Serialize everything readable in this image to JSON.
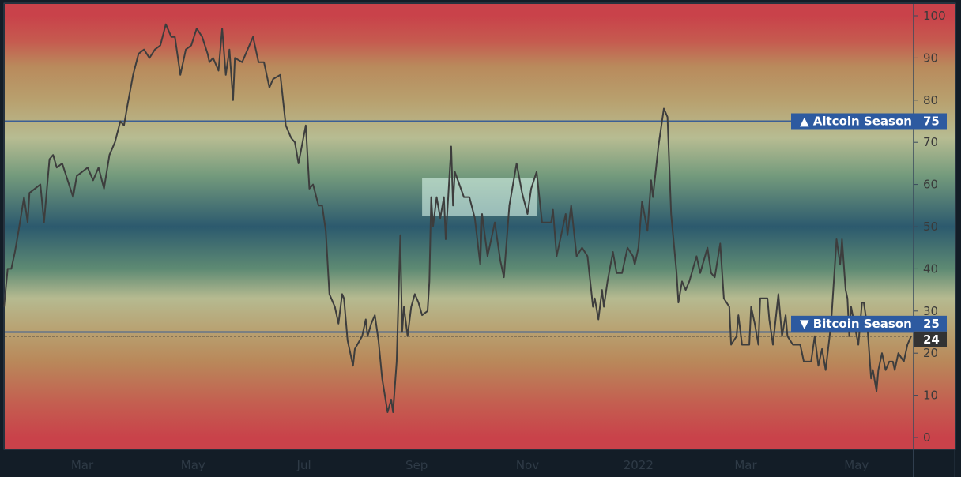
{
  "chart_data": {
    "type": "line",
    "title": "",
    "xlabel": "",
    "ylabel": "",
    "ylim": [
      0,
      100
    ],
    "yticks": [
      0,
      10,
      20,
      30,
      40,
      50,
      60,
      70,
      80,
      90,
      100
    ],
    "xticks": [
      {
        "date": "2021-03-01",
        "label": "Mar"
      },
      {
        "date": "2021-05-01",
        "label": "May"
      },
      {
        "date": "2021-07-01",
        "label": "Jul"
      },
      {
        "date": "2021-09-01",
        "label": "Sep"
      },
      {
        "date": "2021-11-01",
        "label": "Nov"
      },
      {
        "date": "2022-01-01",
        "label": "2022"
      },
      {
        "date": "2022-03-01",
        "label": "Mar"
      },
      {
        "date": "2022-05-01",
        "label": "May"
      }
    ],
    "grid": false,
    "line_color": "#3d3d3d",
    "background_gradient": [
      {
        "value": 100,
        "color": "#c9424a"
      },
      {
        "value": 94,
        "color": "#c65a4f"
      },
      {
        "value": 88,
        "color": "#b98a5c"
      },
      {
        "value": 80,
        "color": "#b8a06e"
      },
      {
        "value": 71,
        "color": "#b7bc92"
      },
      {
        "value": 62,
        "color": "#739a7c"
      },
      {
        "value": 50,
        "color": "#2c5a6e"
      },
      {
        "value": 40,
        "color": "#5e8a73"
      },
      {
        "value": 33,
        "color": "#b6ba90"
      },
      {
        "value": 25,
        "color": "#b8a070"
      },
      {
        "value": 18,
        "color": "#b9885a"
      },
      {
        "value": 8,
        "color": "#c45e50"
      },
      {
        "value": 0,
        "color": "#c9424a"
      }
    ],
    "reference_lines": [
      {
        "label": "▲ Altcoin Season",
        "value": 75,
        "value_label": "75",
        "color": "#3c5f95"
      },
      {
        "label": "▼ Bitcoin Season",
        "value": 25,
        "value_label": "25",
        "color": "#3c5f95"
      }
    ],
    "current_value": {
      "value": 24,
      "label": "24"
    },
    "highlight_box": {
      "date_from": "2021-09-04",
      "date_to": "2021-11-06",
      "value_from": 52.5,
      "value_to": 61.5
    },
    "label_color": "#2d5aa0",
    "series": [
      {
        "points": [
          [
            "2021-01-17",
            31
          ],
          [
            "2021-01-19",
            40
          ],
          [
            "2021-01-21",
            40
          ],
          [
            "2021-01-23",
            44
          ],
          [
            "2021-01-25",
            49
          ],
          [
            "2021-01-28",
            57
          ],
          [
            "2021-01-30",
            51
          ],
          [
            "2021-01-31",
            58
          ],
          [
            "2021-02-03",
            59
          ],
          [
            "2021-02-06",
            60
          ],
          [
            "2021-02-08",
            51
          ],
          [
            "2021-02-11",
            66
          ],
          [
            "2021-02-13",
            67
          ],
          [
            "2021-02-15",
            64
          ],
          [
            "2021-02-18",
            65
          ],
          [
            "2021-02-21",
            61
          ],
          [
            "2021-02-24",
            57
          ],
          [
            "2021-02-26",
            62
          ],
          [
            "2021-03-04",
            64
          ],
          [
            "2021-03-07",
            61
          ],
          [
            "2021-03-10",
            64
          ],
          [
            "2021-03-13",
            59
          ],
          [
            "2021-03-16",
            67
          ],
          [
            "2021-03-19",
            70
          ],
          [
            "2021-03-22",
            75
          ],
          [
            "2021-03-24",
            74
          ],
          [
            "2021-03-26",
            79
          ],
          [
            "2021-03-29",
            86
          ],
          [
            "2021-04-01",
            91
          ],
          [
            "2021-04-04",
            92
          ],
          [
            "2021-04-07",
            90
          ],
          [
            "2021-04-10",
            92
          ],
          [
            "2021-04-13",
            93
          ],
          [
            "2021-04-16",
            98
          ],
          [
            "2021-04-19",
            95
          ],
          [
            "2021-04-21",
            95
          ],
          [
            "2021-04-24",
            86
          ],
          [
            "2021-04-27",
            92
          ],
          [
            "2021-04-30",
            93
          ],
          [
            "2021-05-03",
            97
          ],
          [
            "2021-05-06",
            95
          ],
          [
            "2021-05-09",
            91
          ],
          [
            "2021-05-10",
            89
          ],
          [
            "2021-05-12",
            90
          ],
          [
            "2021-05-15",
            87
          ],
          [
            "2021-05-17",
            97
          ],
          [
            "2021-05-19",
            86
          ],
          [
            "2021-05-21",
            92
          ],
          [
            "2021-05-23",
            80
          ],
          [
            "2021-05-24",
            90
          ],
          [
            "2021-05-28",
            89
          ],
          [
            "2021-05-31",
            92
          ],
          [
            "2021-06-03",
            95
          ],
          [
            "2021-06-06",
            89
          ],
          [
            "2021-06-09",
            89
          ],
          [
            "2021-06-12",
            83
          ],
          [
            "2021-06-14",
            85
          ],
          [
            "2021-06-18",
            86
          ],
          [
            "2021-06-19",
            82
          ],
          [
            "2021-06-21",
            74
          ],
          [
            "2021-06-24",
            71
          ],
          [
            "2021-06-26",
            70
          ],
          [
            "2021-06-28",
            65
          ],
          [
            "2021-07-02",
            74
          ],
          [
            "2021-07-04",
            59
          ],
          [
            "2021-07-06",
            60
          ],
          [
            "2021-07-09",
            55
          ],
          [
            "2021-07-11",
            55
          ],
          [
            "2021-07-13",
            49
          ],
          [
            "2021-07-15",
            34
          ],
          [
            "2021-07-16",
            33
          ],
          [
            "2021-07-18",
            31
          ],
          [
            "2021-07-20",
            27
          ],
          [
            "2021-07-22",
            34
          ],
          [
            "2021-07-23",
            33
          ],
          [
            "2021-07-25",
            23
          ],
          [
            "2021-07-28",
            17
          ],
          [
            "2021-07-29",
            21
          ],
          [
            "2021-08-02",
            24
          ],
          [
            "2021-08-04",
            28
          ],
          [
            "2021-08-05",
            24
          ],
          [
            "2021-08-07",
            27
          ],
          [
            "2021-08-09",
            29
          ],
          [
            "2021-08-11",
            23
          ],
          [
            "2021-08-13",
            14
          ],
          [
            "2021-08-16",
            6
          ],
          [
            "2021-08-18",
            9
          ],
          [
            "2021-08-19",
            6
          ],
          [
            "2021-08-21",
            18
          ],
          [
            "2021-08-23",
            48
          ],
          [
            "2021-08-24",
            25
          ],
          [
            "2021-08-25",
            31
          ],
          [
            "2021-08-27",
            24
          ],
          [
            "2021-08-29",
            31
          ],
          [
            "2021-08-31",
            34
          ],
          [
            "2021-09-02",
            32
          ],
          [
            "2021-09-04",
            29
          ],
          [
            "2021-09-07",
            30
          ],
          [
            "2021-09-08",
            37
          ],
          [
            "2021-09-09",
            57
          ],
          [
            "2021-09-10",
            50
          ],
          [
            "2021-09-12",
            57
          ],
          [
            "2021-09-14",
            52
          ],
          [
            "2021-09-16",
            57
          ],
          [
            "2021-09-17",
            47
          ],
          [
            "2021-09-20",
            69
          ],
          [
            "2021-09-21",
            55
          ],
          [
            "2021-09-22",
            63
          ],
          [
            "2021-09-27",
            57
          ],
          [
            "2021-09-30",
            57
          ],
          [
            "2021-10-03",
            52
          ],
          [
            "2021-10-06",
            41
          ],
          [
            "2021-10-07",
            53
          ],
          [
            "2021-10-10",
            43
          ],
          [
            "2021-10-14",
            51
          ],
          [
            "2021-10-17",
            42
          ],
          [
            "2021-10-19",
            38
          ],
          [
            "2021-10-22",
            55
          ],
          [
            "2021-10-26",
            65
          ],
          [
            "2021-10-29",
            58
          ],
          [
            "2021-11-01",
            53
          ],
          [
            "2021-11-03",
            59
          ],
          [
            "2021-11-06",
            63
          ],
          [
            "2021-11-09",
            51
          ],
          [
            "2021-11-14",
            51
          ],
          [
            "2021-11-15",
            54
          ],
          [
            "2021-11-17",
            43
          ],
          [
            "2021-11-22",
            53
          ],
          [
            "2021-11-23",
            48
          ],
          [
            "2021-11-25",
            55
          ],
          [
            "2021-11-28",
            43
          ],
          [
            "2021-12-01",
            45
          ],
          [
            "2021-12-04",
            43
          ],
          [
            "2021-12-07",
            31
          ],
          [
            "2021-12-08",
            33
          ],
          [
            "2021-12-10",
            28
          ],
          [
            "2021-12-12",
            35
          ],
          [
            "2021-12-13",
            31
          ],
          [
            "2021-12-15",
            37
          ],
          [
            "2021-12-18",
            44
          ],
          [
            "2021-12-20",
            39
          ],
          [
            "2021-12-23",
            39
          ],
          [
            "2021-12-26",
            45
          ],
          [
            "2021-12-29",
            43
          ],
          [
            "2021-12-30",
            41
          ],
          [
            "2022-01-01",
            45
          ],
          [
            "2022-01-03",
            56
          ],
          [
            "2022-01-06",
            49
          ],
          [
            "2022-01-08",
            61
          ],
          [
            "2022-01-09",
            57
          ],
          [
            "2022-01-12",
            69
          ],
          [
            "2022-01-15",
            78
          ],
          [
            "2022-01-17",
            76
          ],
          [
            "2022-01-19",
            53
          ],
          [
            "2022-01-22",
            39
          ],
          [
            "2022-01-23",
            32
          ],
          [
            "2022-01-25",
            37
          ],
          [
            "2022-01-27",
            35
          ],
          [
            "2022-01-29",
            37
          ],
          [
            "2022-02-02",
            43
          ],
          [
            "2022-02-04",
            39
          ],
          [
            "2022-02-08",
            45
          ],
          [
            "2022-02-10",
            39
          ],
          [
            "2022-02-12",
            38
          ],
          [
            "2022-02-15",
            46
          ],
          [
            "2022-02-17",
            33
          ],
          [
            "2022-02-20",
            31
          ],
          [
            "2022-02-21",
            22
          ],
          [
            "2022-02-24",
            24
          ],
          [
            "2022-02-25",
            29
          ],
          [
            "2022-02-27",
            22
          ],
          [
            "2022-03-03",
            22
          ],
          [
            "2022-03-04",
            31
          ],
          [
            "2022-03-06",
            27
          ],
          [
            "2022-03-08",
            22
          ],
          [
            "2022-03-09",
            33
          ],
          [
            "2022-03-13",
            33
          ],
          [
            "2022-03-14",
            28
          ],
          [
            "2022-03-16",
            22
          ],
          [
            "2022-03-19",
            34
          ],
          [
            "2022-03-21",
            24
          ],
          [
            "2022-03-23",
            29
          ],
          [
            "2022-03-24",
            24
          ],
          [
            "2022-03-27",
            22
          ],
          [
            "2022-03-31",
            22
          ],
          [
            "2022-04-02",
            18
          ],
          [
            "2022-04-06",
            18
          ],
          [
            "2022-04-08",
            24
          ],
          [
            "2022-04-10",
            17
          ],
          [
            "2022-04-12",
            21
          ],
          [
            "2022-04-14",
            16
          ],
          [
            "2022-04-17",
            27
          ],
          [
            "2022-04-20",
            47
          ],
          [
            "2022-04-22",
            41
          ],
          [
            "2022-04-23",
            47
          ],
          [
            "2022-04-25",
            35
          ],
          [
            "2022-04-26",
            33
          ],
          [
            "2022-04-27",
            24
          ],
          [
            "2022-04-28",
            31
          ],
          [
            "2022-05-02",
            22
          ],
          [
            "2022-05-04",
            32
          ],
          [
            "2022-05-05",
            32
          ],
          [
            "2022-05-07",
            26
          ],
          [
            "2022-05-09",
            14
          ],
          [
            "2022-05-10",
            16
          ],
          [
            "2022-05-12",
            11
          ],
          [
            "2022-05-13",
            16
          ],
          [
            "2022-05-15",
            20
          ],
          [
            "2022-05-17",
            16
          ],
          [
            "2022-05-19",
            18
          ],
          [
            "2022-05-21",
            18
          ],
          [
            "2022-05-22",
            16
          ],
          [
            "2022-05-24",
            20
          ],
          [
            "2022-05-27",
            18
          ],
          [
            "2022-05-29",
            22
          ],
          [
            "2022-05-31",
            24
          ]
        ]
      }
    ]
  }
}
